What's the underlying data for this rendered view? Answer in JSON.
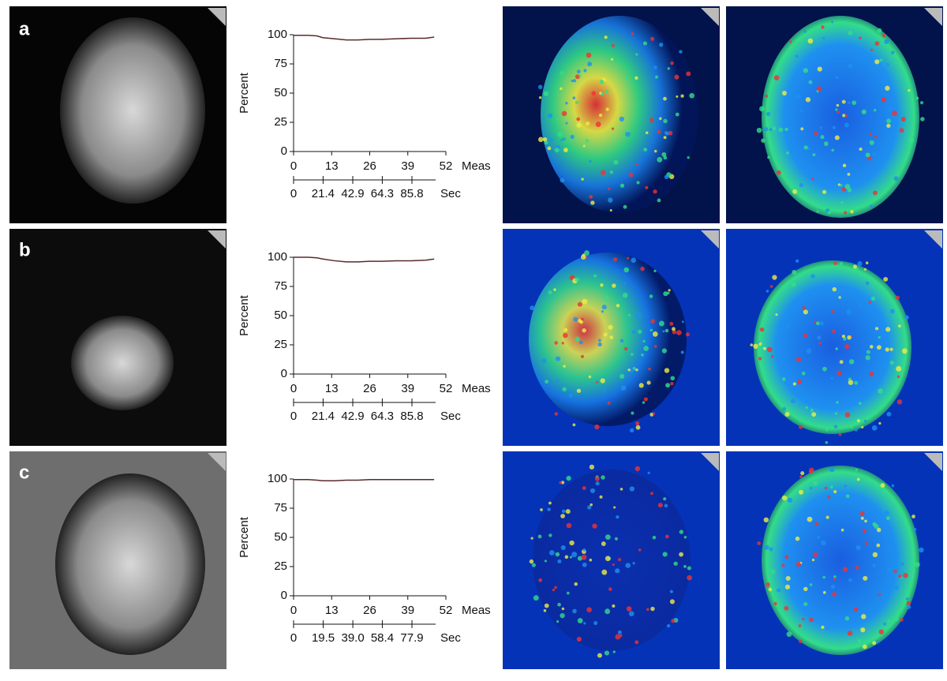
{
  "panel_labels": [
    "a",
    "b",
    "c"
  ],
  "chart_data": [
    {
      "type": "line",
      "ylabel": "Percent",
      "xlabel": "Meas",
      "x2label": "Sec",
      "xlim": [
        0,
        52
      ],
      "xticks": [
        0,
        13,
        26,
        39,
        52
      ],
      "x2lim": [
        0,
        85.8
      ],
      "x2ticks": [
        0,
        21.4,
        42.9,
        64.3,
        85.8
      ],
      "ylim": [
        0,
        100
      ],
      "yticks": [
        0,
        25,
        50,
        75,
        100
      ],
      "x": [
        0,
        5,
        8,
        10,
        14,
        18,
        22,
        26,
        30,
        35,
        40,
        45,
        48
      ],
      "series": [
        {
          "color": "#5a2a2a",
          "values": [
            99.5,
            99.5,
            99,
            97.5,
            96.5,
            95.5,
            95.5,
            96,
            96,
            96.5,
            97,
            97,
            98
          ]
        }
      ]
    },
    {
      "type": "line",
      "ylabel": "Percent",
      "xlabel": "Meas",
      "x2label": "Sec",
      "xlim": [
        0,
        52
      ],
      "xticks": [
        0,
        13,
        26,
        39,
        52
      ],
      "x2lim": [
        0,
        85.8
      ],
      "x2ticks": [
        0,
        21.4,
        42.9,
        64.3,
        85.8
      ],
      "ylim": [
        0,
        100
      ],
      "yticks": [
        0,
        25,
        50,
        75,
        100
      ],
      "x": [
        0,
        5,
        8,
        10,
        14,
        18,
        22,
        26,
        30,
        35,
        40,
        45,
        48
      ],
      "series": [
        {
          "color": "#5a2a2a",
          "values": [
            100,
            100,
            99.5,
            98.5,
            97,
            96,
            96,
            96.5,
            96.5,
            97,
            97,
            97.5,
            98.5
          ]
        }
      ]
    },
    {
      "type": "line",
      "ylabel": "Percent",
      "xlabel": "Meas",
      "x2label": "Sec",
      "xlim": [
        0,
        52
      ],
      "xticks": [
        0,
        13,
        26,
        39,
        52
      ],
      "x2lim": [
        0,
        77.9
      ],
      "x2ticks": [
        0,
        19.5,
        {
          "value": 39,
          "label": "39.0"
        },
        58.4,
        77.9
      ],
      "ylim": [
        0,
        100
      ],
      "yticks": [
        0,
        25,
        50,
        75,
        100
      ],
      "x": [
        0,
        5,
        8,
        10,
        14,
        18,
        22,
        26,
        30,
        35,
        40,
        45,
        48
      ],
      "series": [
        {
          "color": "#5a2a2a",
          "values": [
            99.5,
            99.5,
            99,
            98.5,
            98.5,
            99,
            99,
            99.5,
            99.5,
            99.5,
            99.5,
            99.5,
            99.5
          ]
        }
      ]
    }
  ]
}
